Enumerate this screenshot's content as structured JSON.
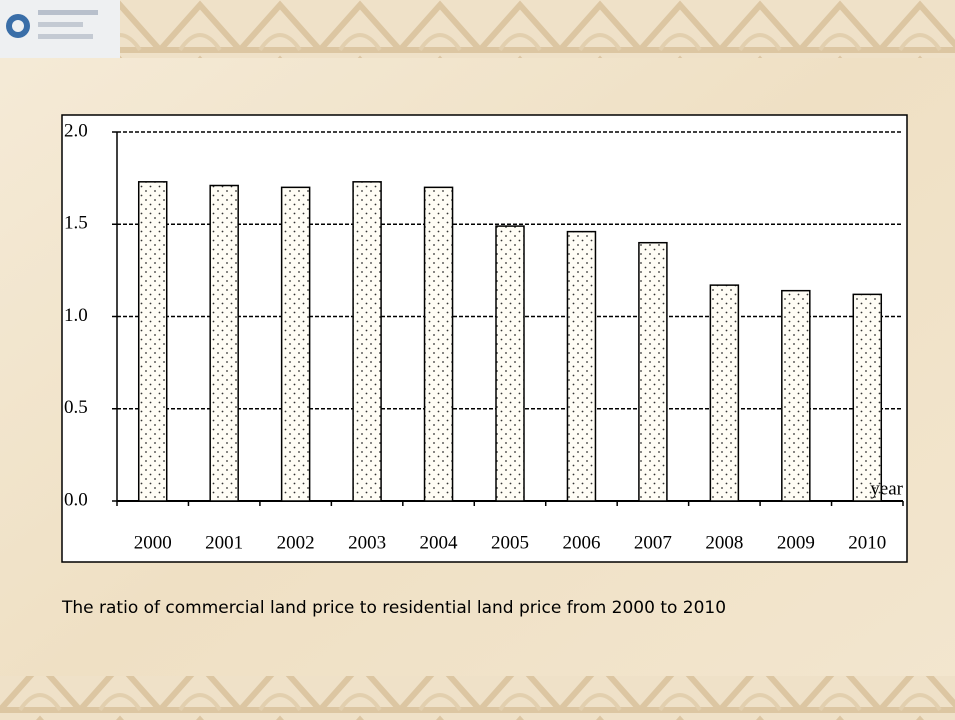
{
  "chart_data": {
    "type": "bar",
    "categories": [
      "2000",
      "2001",
      "2002",
      "2003",
      "2004",
      "2005",
      "2006",
      "2007",
      "2008",
      "2009",
      "2010"
    ],
    "values": [
      1.73,
      1.71,
      1.7,
      1.73,
      1.7,
      1.49,
      1.46,
      1.4,
      1.17,
      1.14,
      1.12
    ],
    "color": "#fffdf5",
    "x_label": "year",
    "ylim": [
      0,
      2
    ],
    "yticks": [
      {
        "value": 0,
        "label": "0.0"
      },
      0.5,
      {
        "value": 1,
        "label": "1.0"
      },
      1.5,
      {
        "value": 2,
        "label": "2.0"
      }
    ],
    "grid": true,
    "caption": "The ratio of commercial land price to residential land price from 2000 to 2010"
  }
}
